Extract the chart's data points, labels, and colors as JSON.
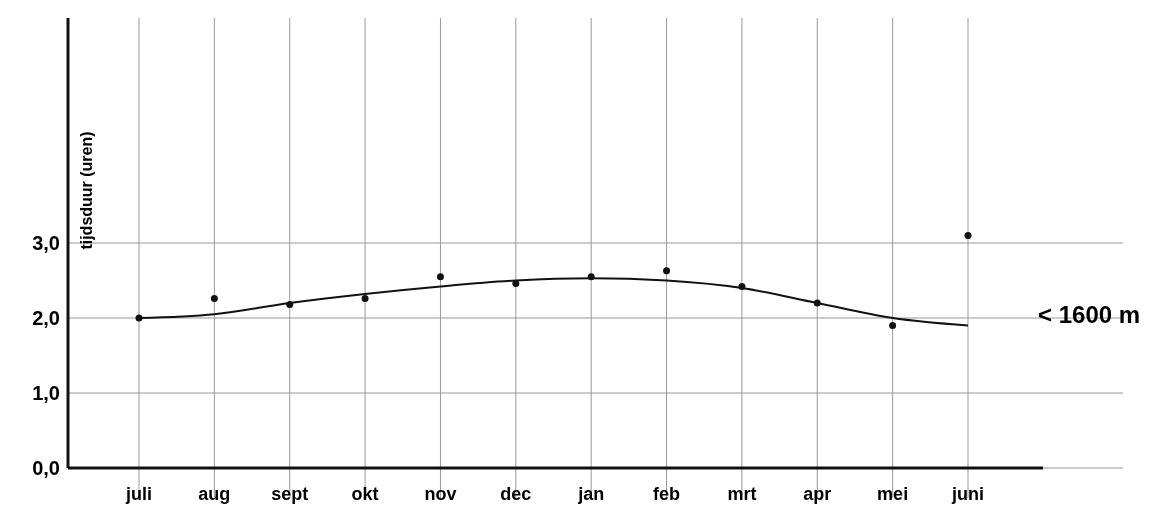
{
  "chart_data": {
    "type": "scatter",
    "ylabel": "tijdsduur (uren)",
    "categories": [
      "juli",
      "aug",
      "sept",
      "okt",
      "nov",
      "dec",
      "jan",
      "feb",
      "mrt",
      "apr",
      "mei",
      "juni"
    ],
    "series": [
      {
        "color": "#111111",
        "marker": "circle",
        "values": [
          2.0,
          2.26,
          2.18,
          2.26,
          2.55,
          2.46,
          2.55,
          2.63,
          2.42,
          2.2,
          1.9,
          3.1
        ]
      },
      {
        "type": "line",
        "color": "#111111",
        "marker": "none",
        "line_style": "solid",
        "values": [
          2.0,
          2.05,
          2.2,
          2.32,
          2.42,
          2.5,
          2.53,
          2.5,
          2.4,
          2.2,
          2.0,
          1.9
        ]
      }
    ],
    "ylim": [
      0,
      6
    ],
    "yticks": [
      {
        "value": 0,
        "label": "0,0"
      },
      {
        "value": 1,
        "label": "1,0"
      },
      {
        "value": 2,
        "label": "2,0"
      },
      {
        "value": 3,
        "label": "3,0"
      }
    ],
    "grid": true,
    "annotations": [
      {
        "text": "< 1600 m",
        "x": "juni",
        "y": 1.9
      }
    ]
  }
}
